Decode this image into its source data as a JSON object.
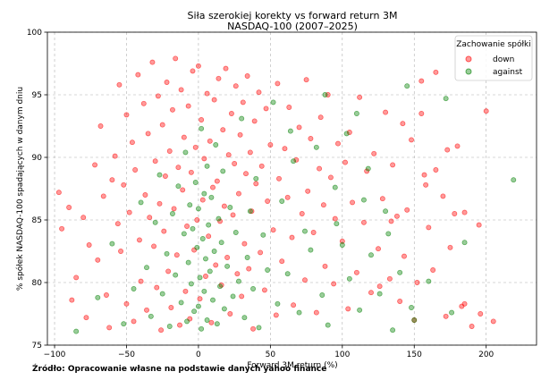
{
  "source_note": "Źródło: Opracowanie własne na podstawie danych yahoo finance",
  "chart_data": {
    "type": "scatter",
    "title": "Siła szerokiej korekty vs forward return 3M",
    "subtitle": "NASDAQ-100 (2007–2025)",
    "xlabel": "Forward 3M return (%)",
    "ylabel": "% spółek NASDAQ-100 spadających w danym dniu",
    "xlim": [
      -105,
      235
    ],
    "ylim": [
      75,
      100
    ],
    "xticks": [
      -100,
      -50,
      0,
      50,
      100,
      150,
      200
    ],
    "yticks": [
      75,
      80,
      85,
      90,
      95,
      100
    ],
    "grid": true,
    "legend": {
      "title": "Zachowanie spółki",
      "placement": "top-right"
    },
    "series": [
      {
        "name": "down",
        "color": "#ff0000",
        "points": [
          [
            -97,
            87.2
          ],
          [
            -95,
            84.3
          ],
          [
            -90,
            86.0
          ],
          [
            -85,
            80.4
          ],
          [
            -88,
            78.6
          ],
          [
            -80,
            85.2
          ],
          [
            -78,
            77.2
          ],
          [
            -76,
            83.0
          ],
          [
            -72,
            89.4
          ],
          [
            -70,
            81.8
          ],
          [
            -68,
            92.5
          ],
          [
            -66,
            86.9
          ],
          [
            -64,
            79.0
          ],
          [
            -62,
            76.4
          ],
          [
            -60,
            88.2
          ],
          [
            -58,
            90.1
          ],
          [
            -56,
            84.7
          ],
          [
            -55,
            95.8
          ],
          [
            -54,
            82.5
          ],
          [
            -52,
            87.8
          ],
          [
            -50,
            93.4
          ],
          [
            -50,
            78.3
          ],
          [
            -48,
            85.6
          ],
          [
            -46,
            91.2
          ],
          [
            -45,
            76.9
          ],
          [
            -44,
            89.0
          ],
          [
            -42,
            96.6
          ],
          [
            -41,
            83.4
          ],
          [
            -40,
            80.1
          ],
          [
            -38,
            94.3
          ],
          [
            -37,
            87.0
          ],
          [
            -36,
            77.8
          ],
          [
            -35,
            91.9
          ],
          [
            -34,
            85.2
          ],
          [
            -32,
            97.6
          ],
          [
            -31,
            82.9
          ],
          [
            -30,
            89.7
          ],
          [
            -29,
            79.6
          ],
          [
            -28,
            94.9
          ],
          [
            -27,
            86.3
          ],
          [
            -26,
            76.2
          ],
          [
            -25,
            92.6
          ],
          [
            -24,
            84.1
          ],
          [
            -23,
            88.5
          ],
          [
            -22,
            96.0
          ],
          [
            -21,
            80.9
          ],
          [
            -20,
            90.5
          ],
          [
            -19,
            78.0
          ],
          [
            -18,
            93.8
          ],
          [
            -17,
            85.9
          ],
          [
            -16,
            97.9
          ],
          [
            -15,
            82.2
          ],
          [
            -14,
            89.2
          ],
          [
            -13,
            76.6
          ],
          [
            -12,
            95.4
          ],
          [
            -11,
            87.4
          ],
          [
            -10,
            91.6
          ],
          [
            -9,
            79.3
          ],
          [
            -8,
            84.5
          ],
          [
            -7,
            94.1
          ],
          [
            -6,
            77.1
          ],
          [
            -5,
            88.8
          ],
          [
            -4,
            96.9
          ],
          [
            -3,
            82.6
          ],
          [
            -2,
            90.8
          ],
          [
            -1,
            85.0
          ],
          [
            0,
            97.3
          ],
          [
            1,
            78.7
          ],
          [
            2,
            93.0
          ],
          [
            3,
            86.6
          ],
          [
            4,
            89.9
          ],
          [
            5,
            80.5
          ],
          [
            6,
            95.1
          ],
          [
            7,
            83.7
          ],
          [
            8,
            91.3
          ],
          [
            9,
            76.8
          ],
          [
            10,
            87.6
          ],
          [
            11,
            94.6
          ],
          [
            12,
            81.4
          ],
          [
            13,
            88.1
          ],
          [
            14,
            96.3
          ],
          [
            15,
            84.9
          ],
          [
            16,
            79.8
          ],
          [
            17,
            92.2
          ],
          [
            18,
            86.1
          ],
          [
            19,
            97.1
          ],
          [
            20,
            82.0
          ],
          [
            21,
            90.2
          ],
          [
            22,
            77.5
          ],
          [
            23,
            93.5
          ],
          [
            24,
            85.4
          ],
          [
            25,
            89.5
          ],
          [
            26,
            95.7
          ],
          [
            27,
            80.7
          ],
          [
            28,
            87.1
          ],
          [
            29,
            91.8
          ],
          [
            30,
            78.9
          ],
          [
            31,
            94.4
          ],
          [
            32,
            83.1
          ],
          [
            33,
            88.7
          ],
          [
            34,
            96.5
          ],
          [
            35,
            81.1
          ],
          [
            36,
            90.4
          ],
          [
            37,
            85.7
          ],
          [
            38,
            76.3
          ],
          [
            39,
            92.9
          ],
          [
            40,
            87.9
          ],
          [
            42,
            95.2
          ],
          [
            43,
            82.4
          ],
          [
            44,
            89.3
          ],
          [
            46,
            79.4
          ],
          [
            47,
            93.9
          ],
          [
            48,
            86.5
          ],
          [
            50,
            91.0
          ],
          [
            52,
            84.2
          ],
          [
            54,
            77.4
          ],
          [
            55,
            95.9
          ],
          [
            56,
            88.3
          ],
          [
            58,
            81.7
          ],
          [
            60,
            90.7
          ],
          [
            62,
            86.8
          ],
          [
            63,
            94.0
          ],
          [
            65,
            83.6
          ],
          [
            66,
            78.2
          ],
          [
            68,
            89.8
          ],
          [
            70,
            92.4
          ],
          [
            72,
            85.5
          ],
          [
            74,
            80.2
          ],
          [
            75,
            96.2
          ],
          [
            76,
            87.3
          ],
          [
            78,
            91.5
          ],
          [
            80,
            84.0
          ],
          [
            82,
            77.6
          ],
          [
            84,
            89.1
          ],
          [
            85,
            93.2
          ],
          [
            87,
            86.2
          ],
          [
            88,
            81.3
          ],
          [
            90,
            95.0
          ],
          [
            92,
            88.4
          ],
          [
            94,
            79.9
          ],
          [
            95,
            85.1
          ],
          [
            97,
            91.1
          ],
          [
            100,
            83.3
          ],
          [
            102,
            89.6
          ],
          [
            104,
            77.9
          ],
          [
            105,
            92.0
          ],
          [
            107,
            86.4
          ],
          [
            110,
            80.8
          ],
          [
            112,
            94.8
          ],
          [
            115,
            84.8
          ],
          [
            117,
            88.9
          ],
          [
            120,
            79.2
          ],
          [
            122,
            90.3
          ],
          [
            125,
            82.7
          ],
          [
            128,
            86.7
          ],
          [
            130,
            93.6
          ],
          [
            133,
            80.3
          ],
          [
            135,
            89.4
          ],
          [
            138,
            85.3
          ],
          [
            140,
            78.5
          ],
          [
            143,
            82.1
          ],
          [
            145,
            85.8
          ],
          [
            148,
            91.4
          ],
          [
            150,
            77.0
          ],
          [
            152,
            80.0
          ],
          [
            155,
            96.1
          ],
          [
            157,
            88.6
          ],
          [
            160,
            84.4
          ],
          [
            163,
            81.0
          ],
          [
            165,
            89.0
          ],
          [
            170,
            86.9
          ],
          [
            172,
            77.3
          ],
          [
            175,
            82.8
          ],
          [
            178,
            85.5
          ],
          [
            180,
            90.9
          ],
          [
            183,
            78.1
          ],
          [
            185,
            85.6
          ],
          [
            190,
            76.5
          ],
          [
            195,
            84.6
          ],
          [
            200,
            93.7
          ],
          [
            205,
            76.9
          ],
          [
            155,
            93.5
          ],
          [
            165,
            96.8
          ],
          [
            185,
            78.3
          ],
          [
            196,
            77.5
          ],
          [
            173,
            90.6
          ],
          [
            158,
            87.8
          ],
          [
            142,
            92.7
          ],
          [
            134,
            84.9
          ],
          [
            126,
            79.7
          ]
        ]
      },
      {
        "name": "against",
        "color": "#008000",
        "points": [
          [
            -85,
            76.1
          ],
          [
            -70,
            78.8
          ],
          [
            -60,
            83.1
          ],
          [
            -52,
            76.7
          ],
          [
            -45,
            79.5
          ],
          [
            -40,
            86.4
          ],
          [
            -36,
            81.2
          ],
          [
            -33,
            77.3
          ],
          [
            -30,
            84.8
          ],
          [
            -27,
            88.6
          ],
          [
            -25,
            79.1
          ],
          [
            -22,
            82.3
          ],
          [
            -20,
            76.5
          ],
          [
            -18,
            85.5
          ],
          [
            -16,
            80.6
          ],
          [
            -14,
            87.7
          ],
          [
            -12,
            78.4
          ],
          [
            -10,
            83.9
          ],
          [
            -9,
            90.4
          ],
          [
            -8,
            76.9
          ],
          [
            -7,
            81.6
          ],
          [
            -6,
            86.2
          ],
          [
            -5,
            79.9
          ],
          [
            -4,
            84.3
          ],
          [
            -3,
            77.7
          ],
          [
            -2,
            88.0
          ],
          [
            -1,
            82.8
          ],
          [
            0,
            85.9
          ],
          [
            0,
            78.1
          ],
          [
            1,
            80.4
          ],
          [
            2,
            92.3
          ],
          [
            2,
            76.3
          ],
          [
            3,
            83.5
          ],
          [
            4,
            87.1
          ],
          [
            4,
            79.3
          ],
          [
            5,
            81.9
          ],
          [
            6,
            89.3
          ],
          [
            6,
            77.0
          ],
          [
            7,
            84.6
          ],
          [
            8,
            80.9
          ],
          [
            9,
            86.8
          ],
          [
            10,
            78.6
          ],
          [
            11,
            82.5
          ],
          [
            12,
            91.0
          ],
          [
            13,
            76.7
          ],
          [
            14,
            85.1
          ],
          [
            15,
            79.7
          ],
          [
            16,
            83.2
          ],
          [
            17,
            88.9
          ],
          [
            18,
            77.9
          ],
          [
            20,
            81.3
          ],
          [
            22,
            86.0
          ],
          [
            24,
            78.9
          ],
          [
            26,
            84.0
          ],
          [
            28,
            80.1
          ],
          [
            30,
            93.1
          ],
          [
            32,
            77.2
          ],
          [
            34,
            82.0
          ],
          [
            36,
            85.7
          ],
          [
            38,
            79.5
          ],
          [
            40,
            88.3
          ],
          [
            42,
            76.4
          ],
          [
            45,
            83.8
          ],
          [
            48,
            81.0
          ],
          [
            52,
            94.4
          ],
          [
            55,
            78.3
          ],
          [
            58,
            86.5
          ],
          [
            62,
            80.7
          ],
          [
            66,
            89.7
          ],
          [
            70,
            77.6
          ],
          [
            74,
            84.1
          ],
          [
            78,
            82.6
          ],
          [
            82,
            90.8
          ],
          [
            86,
            79.0
          ],
          [
            90,
            76.6
          ],
          [
            95,
            87.6
          ],
          [
            100,
            83.0
          ],
          [
            105,
            80.3
          ],
          [
            110,
            93.5
          ],
          [
            112,
            77.8
          ],
          [
            115,
            86.6
          ],
          [
            120,
            82.2
          ],
          [
            126,
            79.1
          ],
          [
            130,
            85.7
          ],
          [
            135,
            76.2
          ],
          [
            140,
            80.8
          ],
          [
            145,
            95.7
          ],
          [
            148,
            78.0
          ],
          [
            150,
            77.0
          ],
          [
            160,
            80.1
          ],
          [
            172,
            94.7
          ],
          [
            176,
            77.6
          ],
          [
            185,
            83.2
          ],
          [
            219,
            88.2
          ],
          [
            132,
            83.9
          ],
          [
            118,
            89.1
          ],
          [
            103,
            91.9
          ],
          [
            96,
            84.7
          ],
          [
            88,
            95.0
          ],
          [
            64,
            92.1
          ]
        ]
      }
    ]
  }
}
